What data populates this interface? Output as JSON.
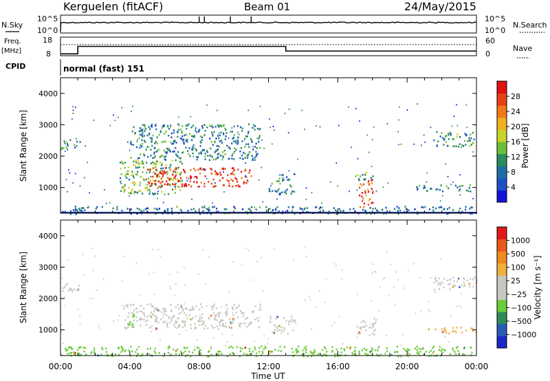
{
  "header": {
    "station": "Kerguelen (fitACF)",
    "beam": "Beam 01",
    "date": "24/May/2015"
  },
  "nsky": {
    "left_label": "N.Sky",
    "right_label": "N.Search",
    "tick_hi": "10^5",
    "tick_lo": "10^0"
  },
  "freq": {
    "left_label": "Freq.",
    "unit": "[MHz]",
    "tick_hi": "18",
    "tick_lo": "8",
    "right_label": "Nave",
    "right_tick_hi": "60",
    "right_tick_lo": "0",
    "steps": [
      {
        "t": 0,
        "v": 9.0
      },
      {
        "t": 1.0,
        "v": 13.0
      },
      {
        "t": 13.0,
        "v": 10.5
      },
      {
        "t": 24,
        "v": 10.5
      }
    ],
    "nave_level": 14.0
  },
  "cpid": {
    "label": "CPID",
    "mode": "normal (fast) 151"
  },
  "chart_data": [
    {
      "type": "heatmap",
      "name": "power",
      "ylabel": "Slant Range [km]",
      "xlabel": "Time UT",
      "xlim": [
        0,
        24
      ],
      "ylim": [
        180,
        4500
      ],
      "yticks": [
        "1000",
        "2000",
        "3000",
        "4000"
      ],
      "xticks": [
        "00:00",
        "04:00",
        "08:00",
        "12:00",
        "16:00",
        "20:00",
        "00:00"
      ],
      "colorbar": {
        "label": "Power [dB]",
        "ticks": [
          "4",
          "8",
          "12",
          "16",
          "20",
          "24",
          "28"
        ],
        "colors": [
          "#1414d8",
          "#1f50c8",
          "#1f6fa4",
          "#2b8c5e",
          "#6cbf3a",
          "#c8d428",
          "#f0b020",
          "#f07a18",
          "#e84018",
          "#e01010"
        ]
      },
      "regions": [
        {
          "t0": 0.0,
          "t1": 1.1,
          "r0": 2200,
          "r1": 2550,
          "level": 0.35
        },
        {
          "t0": 3.4,
          "t1": 7.0,
          "r0": 800,
          "r1": 1900,
          "level": 0.45
        },
        {
          "t0": 5.0,
          "t1": 11.0,
          "r0": 1050,
          "r1": 1650,
          "level": 0.9
        },
        {
          "t0": 4.0,
          "t1": 11.5,
          "r0": 1900,
          "r1": 3050,
          "level": 0.3
        },
        {
          "t0": 12.0,
          "t1": 13.5,
          "r0": 800,
          "r1": 1500,
          "level": 0.3
        },
        {
          "t0": 17.2,
          "t1": 18.0,
          "r0": 400,
          "r1": 1300,
          "level": 0.85
        },
        {
          "t0": 16.8,
          "t1": 18.4,
          "r0": 1250,
          "r1": 1500,
          "level": 0.4
        },
        {
          "t0": 20.5,
          "t1": 24.0,
          "r0": 900,
          "r1": 1100,
          "level": 0.3
        },
        {
          "t0": 21.5,
          "t1": 24.0,
          "r0": 2300,
          "r1": 2800,
          "level": 0.35
        },
        {
          "t0": 0.0,
          "t1": 24.0,
          "r0": 180,
          "r1": 420,
          "level": 0.25
        }
      ]
    },
    {
      "type": "heatmap",
      "name": "velocity",
      "ylabel": "Slant Range [km]",
      "xlabel": "Time UT",
      "xlim": [
        0,
        24
      ],
      "ylim": [
        180,
        4500
      ],
      "yticks": [
        "1000",
        "2000",
        "3000",
        "4000"
      ],
      "xticks": [
        "00:00",
        "04:00",
        "08:00",
        "12:00",
        "16:00",
        "20:00",
        "00:00"
      ],
      "colorbar": {
        "label": "Velocity [m s⁻¹]",
        "ticks": [
          "1000",
          "500",
          "100",
          "25",
          "−25",
          "−100",
          "−500",
          "−1000"
        ],
        "colors": [
          "#1a28c8",
          "#2a5ab8",
          "#2f8a58",
          "#6ccc3a",
          "#c8c8c0",
          "#c8c8c0",
          "#f0b040",
          "#f08a20",
          "#e85818",
          "#e01818"
        ]
      },
      "regions": [
        {
          "t0": 0.0,
          "t1": 1.1,
          "r0": 2200,
          "r1": 2550,
          "color": "#c8c8c0"
        },
        {
          "t0": 3.6,
          "t1": 11.5,
          "r0": 1050,
          "r1": 1850,
          "color": "#c8c8c0"
        },
        {
          "t0": 3.8,
          "t1": 4.3,
          "r0": 1050,
          "r1": 1500,
          "color": "#6ccc3a"
        },
        {
          "t0": 12.0,
          "t1": 13.5,
          "r0": 900,
          "r1": 1450,
          "color": "#c8c8c0"
        },
        {
          "t0": 17.0,
          "t1": 18.2,
          "r0": 850,
          "r1": 1400,
          "color": "#c8c8c0"
        },
        {
          "t0": 21.2,
          "t1": 24.0,
          "r0": 900,
          "r1": 1100,
          "color": "#f0b040"
        },
        {
          "t0": 21.5,
          "t1": 24.0,
          "r0": 2300,
          "r1": 2700,
          "color": "#c8c8c0"
        },
        {
          "t0": 0.0,
          "t1": 24.0,
          "r0": 180,
          "r1": 500,
          "color": "#6ccc3a"
        }
      ]
    }
  ]
}
